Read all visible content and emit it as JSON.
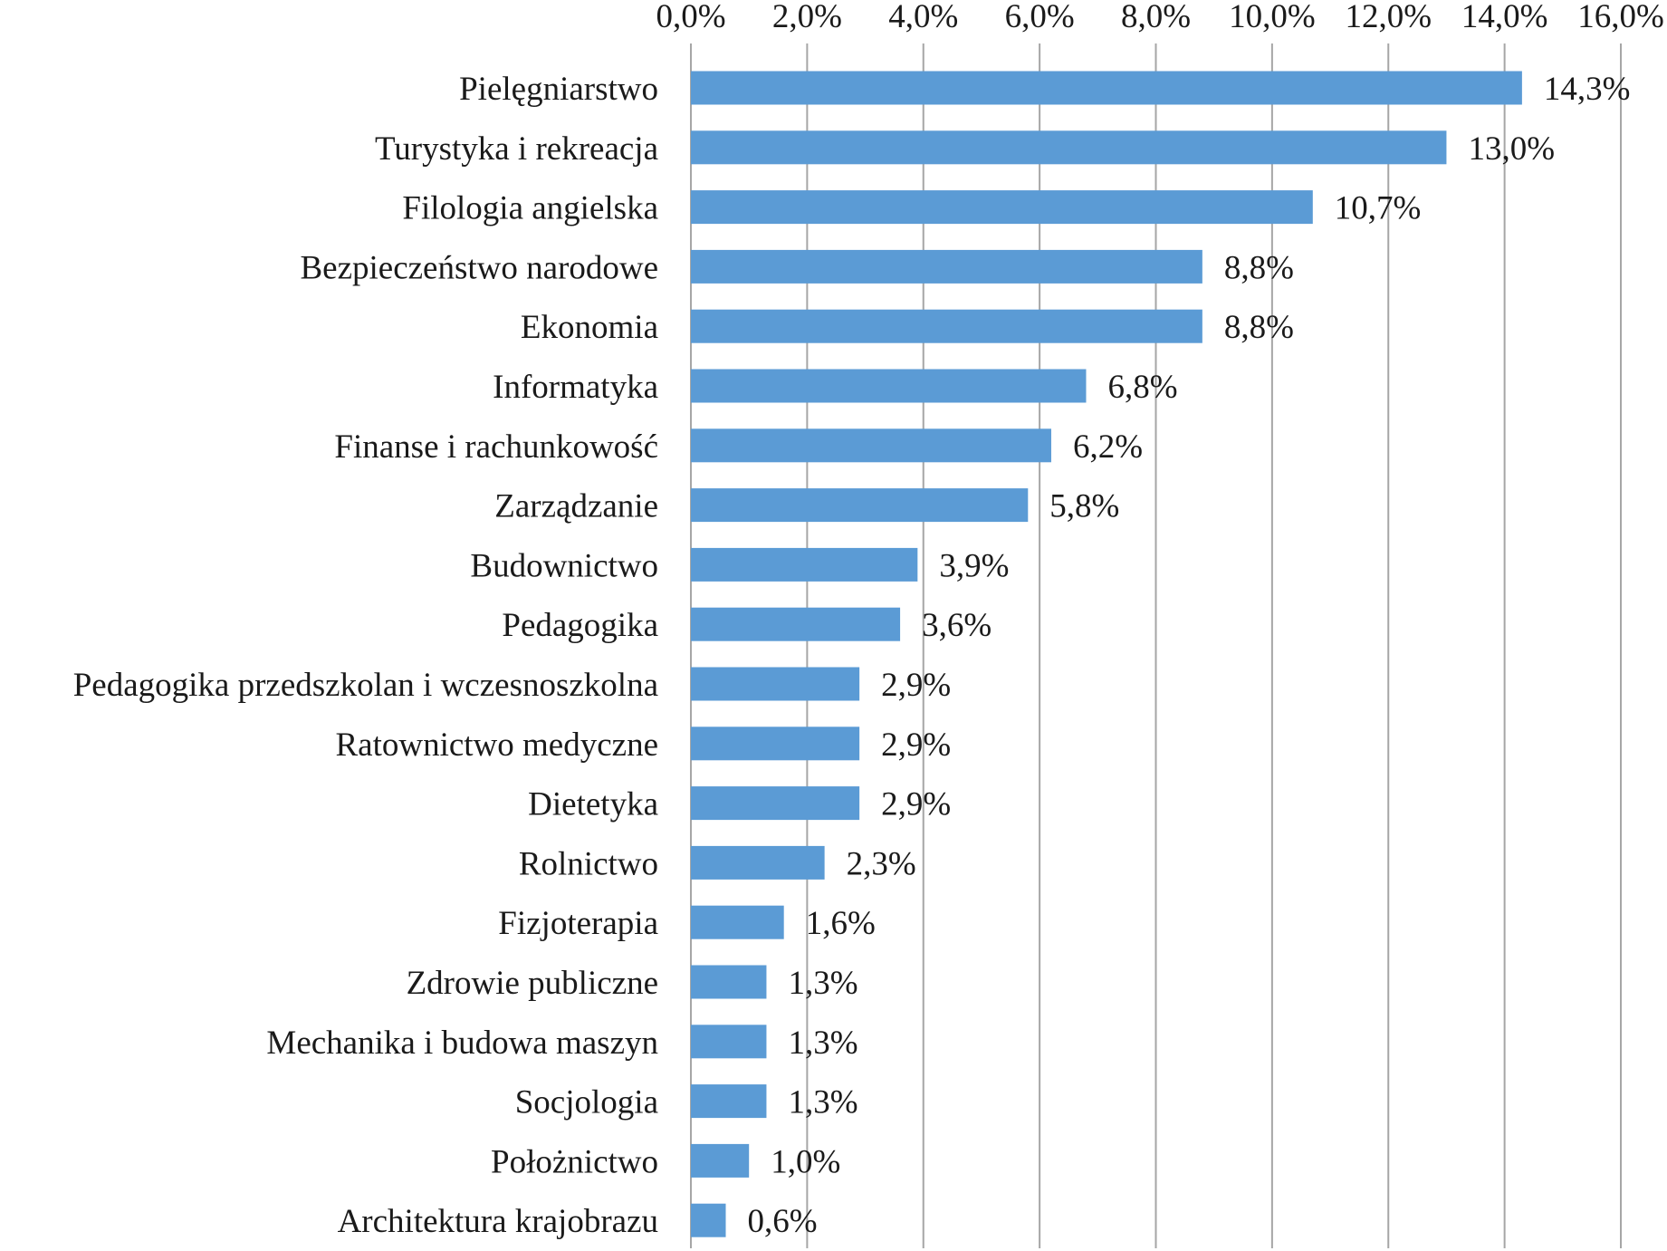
{
  "chart_data": {
    "type": "bar",
    "orientation": "horizontal",
    "categories": [
      "Pielęgniarstwo",
      "Turystyka i rekreacja",
      "Filologia angielska",
      "Bezpieczeństwo narodowe",
      "Ekonomia",
      "Informatyka",
      "Finanse i rachunkowość",
      "Zarządzanie",
      "Budownictwo",
      "Pedagogika",
      "Pedagogika przedszkolan i wczesnoszkolna",
      "Ratownictwo medyczne",
      "Dietetyka",
      "Rolnictwo",
      "Fizjoterapia",
      "Zdrowie publiczne",
      "Mechanika i budowa maszyn",
      "Socjologia",
      "Położnictwo",
      "Architektura krajobrazu"
    ],
    "values": [
      14.3,
      13.0,
      10.7,
      8.8,
      8.8,
      6.8,
      6.2,
      5.8,
      3.9,
      3.6,
      2.9,
      2.9,
      2.9,
      2.3,
      1.6,
      1.3,
      1.3,
      1.3,
      1.0,
      0.6
    ],
    "value_labels": [
      "14,3%",
      "13,0%",
      "10,7%",
      "8,8%",
      "8,8%",
      "6,8%",
      "6,2%",
      "5,8%",
      "3,9%",
      "3,6%",
      "2,9%",
      "2,9%",
      "2,9%",
      "2,3%",
      "1,6%",
      "1,3%",
      "1,3%",
      "1,3%",
      "1,0%",
      "0,6%"
    ],
    "xlim": [
      0,
      16
    ],
    "x_ticks": [
      0,
      2,
      4,
      6,
      8,
      10,
      12,
      14,
      16
    ],
    "x_tick_labels": [
      "0,0%",
      "2,0%",
      "4,0%",
      "6,0%",
      "8,0%",
      "10,0%",
      "12,0%",
      "14,0%",
      "16,0%"
    ],
    "x_axis_position": "top",
    "grid": true,
    "legend": "none",
    "bar_color": "#5b9bd5",
    "title": "",
    "xlabel": "",
    "ylabel": ""
  }
}
